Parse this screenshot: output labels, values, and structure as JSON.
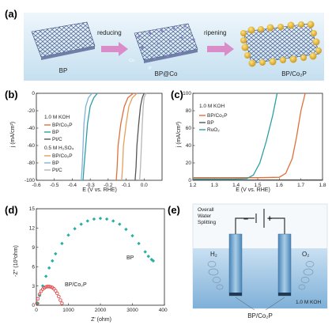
{
  "panel_a": {
    "label": "(a)",
    "step1": "reducing",
    "step2": "ripening",
    "caption1": "BP",
    "caption2": "BP@Co",
    "caption3": "BP/Co₂P",
    "atom_co": "Co",
    "atom_p": "P"
  },
  "panel_e": {
    "label": "(e)",
    "title_lines": [
      "Overall",
      "Water",
      "Splitting"
    ],
    "minus": "–",
    "plus": "+",
    "h2": "H₂",
    "o2": "O₂",
    "electrolyte": "1.0 M KOH",
    "electrode_label": "BP/Co₂P"
  },
  "colors": {
    "orange": "#e0703a",
    "teal": "#2d9ea4",
    "gray": "#555555",
    "lightorange": "#e6a05a",
    "lightblue": "#7fb2d8",
    "lightgray": "#b7b7b7",
    "diamond": "#27b0a0",
    "red": "#e34a4a",
    "liquid": "#9ec6e6",
    "bg_a": "#d7e9f5"
  },
  "chart_data": [
    {
      "panel": "(b)",
      "type": "line",
      "xlabel": "E (V vs. RHE)",
      "ylabel": "j (mA/cm²)",
      "xlim": [
        -0.6,
        0.1
      ],
      "ylim": [
        -100,
        0
      ],
      "xticks": [
        "-0.6",
        "-0.5",
        "-0.4",
        "-0.3",
        "-0.2",
        "-0.1",
        "0.0"
      ],
      "yticks": [
        "0",
        "-20",
        "-40",
        "-60",
        "-80",
        "-100"
      ],
      "legend_groups": [
        {
          "title": "1.0 M KOH",
          "entries": [
            "BP/Co₂P",
            "BP",
            "Pt/C"
          ]
        },
        {
          "title": "0.5 M H₂SO₄",
          "entries": [
            "BP/Co₂P",
            "BP",
            "Pt/C"
          ]
        }
      ],
      "series": [
        {
          "name": "BP/Co₂P",
          "group": "1.0 M KOH",
          "color": "orange",
          "x": [
            -0.06,
            -0.09,
            -0.11,
            -0.13,
            -0.145,
            -0.15,
            -0.155
          ],
          "y": [
            0,
            -5,
            -15,
            -35,
            -60,
            -85,
            -100
          ]
        },
        {
          "name": "BP",
          "group": "1.0 M KOH",
          "color": "teal",
          "x": [
            -0.26,
            -0.28,
            -0.3,
            -0.315,
            -0.325,
            -0.335,
            -0.34
          ],
          "y": [
            0,
            -5,
            -15,
            -35,
            -60,
            -85,
            -100
          ]
        },
        {
          "name": "Pt/C",
          "group": "1.0 M KOH",
          "color": "gray",
          "x": [
            0.0,
            -0.01,
            -0.02,
            -0.03,
            -0.04,
            -0.045,
            -0.05
          ],
          "y": [
            0,
            -5,
            -15,
            -35,
            -60,
            -85,
            -100
          ]
        },
        {
          "name": "BP/Co₂P",
          "group": "0.5 M H₂SO₄",
          "color": "lightorange",
          "x": [
            -0.04,
            -0.065,
            -0.085,
            -0.1,
            -0.115,
            -0.12,
            -0.125
          ],
          "y": [
            0,
            -5,
            -15,
            -35,
            -60,
            -85,
            -100
          ]
        },
        {
          "name": "BP",
          "group": "0.5 M H₂SO₄",
          "color": "lightblue",
          "x": [
            -0.29,
            -0.31,
            -0.325,
            -0.335,
            -0.34,
            -0.345,
            -0.35
          ],
          "y": [
            0,
            -5,
            -15,
            -35,
            -60,
            -85,
            -100
          ]
        },
        {
          "name": "Pt/C",
          "group": "0.5 M H₂SO₄",
          "color": "lightgray",
          "x": [
            0.01,
            0.0,
            -0.005,
            -0.01,
            -0.015,
            -0.02,
            -0.025
          ],
          "y": [
            0,
            -5,
            -15,
            -35,
            -60,
            -85,
            -100
          ]
        }
      ]
    },
    {
      "panel": "(c)",
      "type": "line",
      "xlabel": "E (V vs. RHE)",
      "ylabel": "j (mA/cm²)",
      "xlim": [
        1.2,
        1.8
      ],
      "ylim": [
        0,
        100
      ],
      "xticks": [
        "1.2",
        "1.3",
        "1.4",
        "1.5",
        "1.6",
        "1.7",
        "1.8"
      ],
      "yticks": [
        "0",
        "20",
        "40",
        "60",
        "80",
        "100"
      ],
      "legend_title": "1.0 M KOH",
      "series": [
        {
          "name": "BP/Co₂P",
          "color": "orange",
          "x": [
            1.2,
            1.4,
            1.5,
            1.6,
            1.63,
            1.66,
            1.68,
            1.7,
            1.72
          ],
          "y": [
            3,
            3,
            3,
            3.5,
            8,
            25,
            50,
            80,
            100
          ]
        },
        {
          "name": "BP",
          "color": "gray",
          "x": [
            1.2,
            1.8
          ],
          "y": [
            0.5,
            0.5
          ]
        },
        {
          "name": "RuO₂",
          "color": "teal",
          "x": [
            1.2,
            1.4,
            1.45,
            1.48,
            1.51,
            1.54,
            1.57,
            1.59
          ],
          "y": [
            1.5,
            1.5,
            2,
            6,
            20,
            45,
            75,
            100
          ]
        }
      ]
    },
    {
      "panel": "(d)",
      "type": "scatter",
      "xlabel": "Z' (ohm)",
      "ylabel": "-Z'' (10³ohm)",
      "xlim": [
        0,
        4000
      ],
      "ylim": [
        0,
        15
      ],
      "xticks": [
        "0",
        "1000",
        "2000",
        "3000",
        "4000"
      ],
      "yticks": [
        "0",
        "3",
        "6",
        "9",
        "12",
        "15"
      ],
      "series": [
        {
          "name": "BP",
          "color": "diamond",
          "x": [
            50,
            100,
            200,
            300,
            400,
            500,
            600,
            800,
            1000,
            1200,
            1400,
            1600,
            1800,
            2000,
            2200,
            2400,
            2600,
            2800,
            3000,
            3200,
            3400,
            3500,
            3600,
            3650
          ],
          "y": [
            0.3,
            1.5,
            3,
            4.5,
            5.8,
            6.9,
            8,
            9.6,
            10.9,
            11.9,
            12.6,
            13.1,
            13.4,
            13.5,
            13.4,
            13.1,
            12.6,
            11.8,
            10.8,
            9.6,
            8.3,
            7.6,
            7.1,
            6.9
          ]
        },
        {
          "name": "BP/Co₂P",
          "color": "red",
          "x": [
            20,
            50,
            100,
            150,
            200,
            250,
            300,
            350,
            400,
            450,
            500,
            550,
            600,
            650,
            700,
            750,
            800
          ],
          "y": [
            0.3,
            1.0,
            1.7,
            2.2,
            2.5,
            2.7,
            2.85,
            2.9,
            2.9,
            2.85,
            2.75,
            2.55,
            2.25,
            1.85,
            1.35,
            0.8,
            0.3
          ]
        }
      ]
    }
  ]
}
